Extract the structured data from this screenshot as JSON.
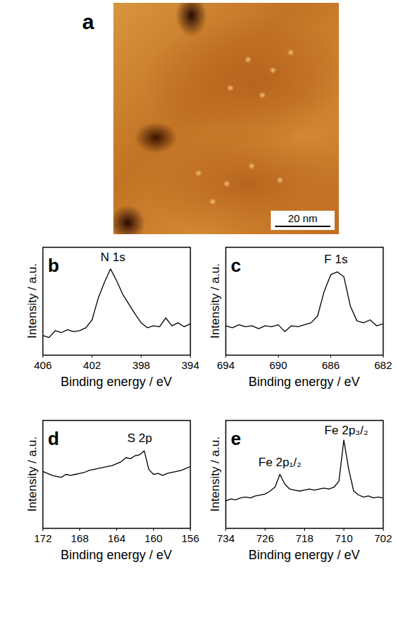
{
  "chart_data": [
    {
      "type": "image",
      "panel_label": "a",
      "annotations": [
        {
          "text": "20 nm"
        }
      ]
    },
    {
      "type": "line",
      "panel_label": "b",
      "x_label": "Binding energy / eV",
      "y_label": "Intensity / a.u.",
      "xlim": [
        406,
        394
      ],
      "xticks": [
        406,
        402,
        398,
        394
      ],
      "ylim": [
        0,
        110
      ],
      "tick_labels": "x",
      "color": "#000000",
      "x": [
        406,
        405.5,
        405,
        404.5,
        404,
        403.5,
        403,
        402.5,
        402,
        401.5,
        401,
        400.5,
        400,
        399.5,
        399,
        398.5,
        398,
        397.5,
        397,
        396.5,
        396,
        395.5,
        395,
        394.5,
        394
      ],
      "values": [
        20,
        18,
        25,
        23,
        26,
        24,
        25,
        28,
        36,
        58,
        74,
        88,
        76,
        62,
        52,
        42,
        33,
        28,
        30,
        29,
        38,
        30,
        33,
        29,
        32
      ],
      "annotations": [
        {
          "text": "N 1s",
          "x": 400.3,
          "y": 100
        }
      ]
    },
    {
      "type": "line",
      "panel_label": "c",
      "x_label": "Binding energy / eV",
      "y_label": "Intensity / a.u.",
      "xlim": [
        694,
        682
      ],
      "xticks": [
        694,
        690,
        686,
        682
      ],
      "ylim": [
        0,
        110
      ],
      "tick_labels": "x",
      "color": "#000000",
      "x": [
        694,
        693.5,
        693,
        692.5,
        692,
        691.5,
        691,
        690.5,
        690,
        689.5,
        689,
        688.5,
        688,
        687.5,
        687,
        686.5,
        686,
        685.5,
        685,
        684.5,
        684,
        683.5,
        683,
        682.5,
        682
      ],
      "values": [
        30,
        28,
        31,
        29,
        30,
        27,
        30,
        29,
        31,
        24,
        30,
        29,
        31,
        33,
        40,
        65,
        82,
        85,
        80,
        50,
        35,
        33,
        36,
        30,
        32
      ],
      "annotations": [
        {
          "text": "F 1s",
          "x": 685.6,
          "y": 98
        }
      ]
    },
    {
      "type": "line",
      "panel_label": "d",
      "x_label": "Binding energy / eV",
      "y_label": "Intensity / a.u.",
      "xlim": [
        172,
        156
      ],
      "xticks": [
        172,
        168,
        164,
        160,
        156
      ],
      "ylim": [
        0,
        110
      ],
      "tick_labels": "x",
      "color": "#000000",
      "x": [
        172,
        171.5,
        171,
        170.5,
        170,
        169.5,
        169,
        168.5,
        168,
        167.5,
        167,
        166.5,
        166,
        165.5,
        165,
        164.5,
        164,
        163.5,
        163,
        162.5,
        162,
        161.5,
        161,
        160.5,
        160,
        159.5,
        159,
        158.5,
        158,
        157.5,
        157,
        156.5,
        156
      ],
      "values": [
        58,
        56,
        54,
        53,
        52,
        55,
        54,
        55,
        56,
        57,
        59,
        60,
        61,
        62,
        63,
        64,
        66,
        68,
        72,
        71,
        74,
        75,
        79,
        60,
        55,
        56,
        54,
        56,
        57,
        58,
        59,
        61,
        63
      ],
      "annotations": [
        {
          "text": "S 2p",
          "x": 161.5,
          "y": 92
        }
      ]
    },
    {
      "type": "line",
      "panel_label": "e",
      "x_label": "Binding energy / eV",
      "y_label": "Intensity / a.u.",
      "xlim": [
        734,
        702
      ],
      "xticks": [
        734,
        726,
        718,
        710,
        702
      ],
      "ylim": [
        0,
        110
      ],
      "tick_labels": "x",
      "color": "#000000",
      "x": [
        734,
        733,
        732,
        731,
        730,
        729,
        728,
        727,
        726,
        725,
        724,
        723,
        722,
        721,
        720,
        719,
        718,
        717,
        716,
        715,
        714,
        713,
        712,
        711,
        710,
        709,
        708,
        707,
        706,
        705,
        704,
        703,
        702
      ],
      "values": [
        28,
        30,
        29,
        31,
        32,
        31,
        33,
        34,
        35,
        38,
        42,
        55,
        45,
        40,
        39,
        38,
        39,
        40,
        39,
        40,
        41,
        40,
        42,
        48,
        90,
        60,
        38,
        34,
        32,
        33,
        31,
        32,
        31
      ],
      "annotations": [
        {
          "text": "Fe 2p₁/₂",
          "x": 723,
          "y": 67
        },
        {
          "text": "Fe 2p₃/₂",
          "x": 709.5,
          "y": 100
        }
      ]
    }
  ]
}
